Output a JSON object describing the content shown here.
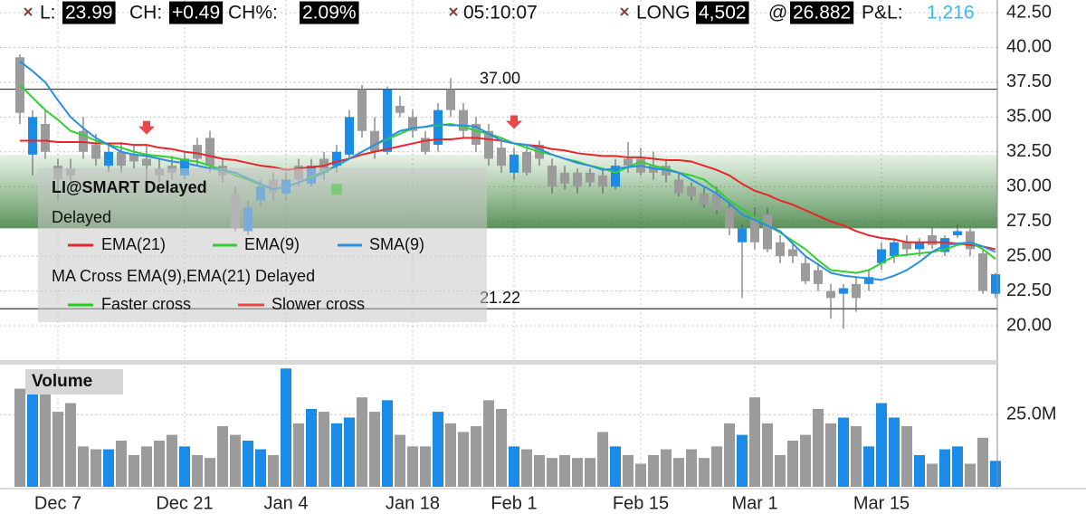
{
  "status_bar": {
    "last_label": "L:",
    "last": "23.99",
    "change_label": "CH:",
    "change": "+0.49",
    "change_pct_label": "CH%:",
    "change_pct": "2.09%",
    "time": "05:10:07",
    "position_side": "LONG",
    "position_size": "4,502",
    "at": "@",
    "avg_price": "26.882",
    "pnl_label": "P&L:",
    "pnl": "1,216"
  },
  "chart_data": [
    {
      "type": "candlestick",
      "legend_title": "LI@SMART Delayed",
      "legend_subtitle": "Delayed",
      "study_name": "MA Cross EMA(9),EMA(21) Delayed",
      "categories": [
        null,
        null,
        null,
        "Dec 7",
        null,
        null,
        null,
        null,
        null,
        null,
        null,
        null,
        null,
        "Dec 21",
        null,
        null,
        null,
        null,
        null,
        null,
        null,
        "Jan 4",
        null,
        null,
        null,
        null,
        null,
        null,
        null,
        null,
        null,
        "Jan 18",
        null,
        null,
        null,
        null,
        null,
        null,
        null,
        "Feb 1",
        null,
        null,
        null,
        null,
        null,
        null,
        null,
        null,
        null,
        "Feb 15",
        null,
        null,
        null,
        null,
        null,
        null,
        null,
        null,
        "Mar 1",
        null,
        null,
        null,
        null,
        null,
        null,
        null,
        null,
        null,
        "Mar 15",
        null,
        null,
        null,
        null,
        null,
        null,
        null,
        null,
        null
      ],
      "open": [
        39.3,
        32.3,
        34.5,
        31.5,
        31.3,
        34.0,
        33.0,
        31.5,
        32.5,
        32.3,
        32.0,
        31.3,
        31.5,
        30.8,
        33.0,
        33.5,
        31.5,
        29.5,
        26.8,
        29.0,
        30.5,
        29.5,
        31.5,
        30.2,
        32.0,
        31.5,
        32.3,
        37.0,
        34.0,
        32.5,
        35.8,
        35.0,
        33.5,
        33.0,
        37.0,
        35.5,
        34.5,
        34.0,
        32.8,
        31.0,
        32.5,
        33.0,
        31.5,
        31.0,
        31.0,
        31.0,
        30.8,
        30.0,
        32.0,
        32.0,
        31.5,
        31.5,
        30.5,
        30.0,
        29.5,
        29.5,
        28.5,
        26.0,
        27.8,
        28.0,
        26.0,
        25.5,
        24.5,
        24.0,
        22.5,
        22.3,
        23.0,
        23.0,
        24.5,
        25.0,
        26.0,
        25.5,
        26.5,
        25.3,
        26.5,
        26.8,
        25.2,
        22.3
      ],
      "high": [
        39.5,
        35.5,
        35.5,
        32.0,
        32.0,
        35.0,
        33.8,
        33.0,
        33.2,
        33.0,
        33.0,
        32.0,
        32.2,
        32.5,
        33.5,
        34.0,
        32.0,
        30.0,
        29.0,
        30.5,
        31.0,
        31.0,
        32.0,
        32.0,
        32.5,
        33.0,
        35.5,
        37.3,
        35.0,
        37.2,
        36.5,
        35.5,
        34.0,
        36.0,
        37.8,
        36.0,
        35.0,
        34.5,
        33.5,
        32.8,
        33.0,
        33.3,
        32.0,
        31.5,
        31.3,
        31.3,
        31.2,
        32.0,
        33.2,
        32.8,
        32.5,
        32.0,
        31.0,
        30.3,
        30.0,
        30.0,
        29.0,
        27.3,
        28.5,
        28.5,
        26.5,
        26.0,
        25.0,
        24.5,
        23.0,
        23.0,
        23.5,
        24.0,
        26.0,
        26.3,
        26.5,
        26.3,
        27.0,
        26.5,
        27.3,
        27.0,
        25.5,
        23.8
      ],
      "low": [
        34.5,
        30.8,
        32.0,
        29.0,
        30.0,
        32.0,
        31.5,
        31.0,
        31.0,
        31.3,
        30.0,
        30.3,
        30.5,
        30.5,
        31.5,
        31.0,
        30.3,
        26.8,
        26.5,
        28.5,
        29.0,
        29.0,
        30.0,
        30.0,
        30.5,
        31.0,
        32.0,
        33.5,
        32.0,
        32.3,
        35.0,
        33.5,
        32.3,
        32.5,
        35.0,
        33.5,
        32.5,
        31.5,
        31.0,
        30.5,
        30.8,
        31.5,
        29.5,
        29.8,
        29.5,
        30.0,
        29.5,
        29.8,
        31.0,
        30.8,
        30.5,
        30.3,
        29.3,
        29.0,
        28.5,
        28.0,
        26.5,
        22.0,
        25.5,
        25.3,
        24.5,
        24.5,
        23.0,
        22.5,
        20.5,
        19.8,
        21.0,
        22.5,
        24.0,
        24.5,
        25.0,
        25.0,
        25.5,
        25.0,
        26.3,
        25.0,
        22.3,
        22.0
      ],
      "close": [
        35.3,
        35.0,
        32.5,
        30.5,
        30.8,
        32.5,
        32.0,
        32.5,
        31.5,
        31.8,
        31.5,
        30.8,
        31.0,
        32.0,
        32.0,
        31.5,
        30.8,
        27.0,
        28.5,
        30.0,
        29.5,
        30.5,
        30.5,
        31.5,
        31.0,
        32.5,
        35.0,
        34.0,
        32.5,
        37.0,
        35.3,
        34.0,
        32.5,
        35.5,
        35.5,
        34.0,
        33.0,
        32.0,
        31.5,
        32.3,
        31.0,
        32.0,
        30.0,
        30.2,
        30.0,
        30.3,
        30.0,
        31.5,
        31.5,
        31.0,
        31.0,
        30.8,
        29.5,
        29.3,
        28.7,
        28.3,
        27.0,
        27.0,
        26.0,
        25.5,
        25.0,
        25.0,
        23.2,
        23.0,
        22.0,
        22.7,
        22.0,
        23.5,
        25.5,
        26.0,
        25.5,
        26.0,
        25.8,
        26.3,
        26.8,
        25.5,
        22.5,
        23.7
      ],
      "up_color": "#1a8ce8",
      "down_color": "#9b9b9b",
      "series": [
        {
          "name": "EMA(21)",
          "color": "#e8262a",
          "values": [
            33.3,
            33.3,
            33.3,
            33.2,
            33.2,
            33.2,
            33.1,
            33.1,
            33.1,
            33.0,
            33.0,
            32.8,
            32.7,
            32.5,
            32.4,
            32.2,
            32.0,
            31.9,
            31.7,
            31.5,
            31.4,
            31.2,
            31.3,
            31.4,
            31.5,
            31.8,
            32.0,
            32.3,
            32.5,
            32.7,
            32.9,
            33.1,
            33.3,
            33.4,
            33.4,
            33.5,
            33.5,
            33.4,
            33.3,
            33.1,
            33.0,
            32.9,
            32.7,
            32.6,
            32.4,
            32.3,
            32.2,
            32.2,
            32.1,
            32.1,
            32.0,
            31.9,
            31.9,
            31.8,
            31.5,
            31.2,
            30.8,
            30.2,
            29.7,
            29.4,
            29.0,
            28.7,
            28.3,
            27.9,
            27.5,
            27.2,
            26.8,
            26.5,
            26.3,
            26.2,
            26.0,
            26.0,
            26.0,
            26.0,
            25.9,
            25.8,
            25.7,
            25.5
          ]
        },
        {
          "name": "EMA(9)",
          "color": "#2fd02f",
          "values": [
            37.3,
            36.4,
            35.5,
            34.8,
            34.0,
            33.7,
            33.3,
            33.0,
            32.8,
            32.5,
            32.3,
            32.2,
            32.1,
            31.9,
            31.8,
            31.5,
            31.2,
            30.8,
            30.5,
            30.1,
            29.8,
            30.0,
            30.3,
            30.7,
            31.1,
            31.5,
            32.0,
            32.5,
            33.0,
            33.4,
            33.8,
            34.2,
            34.3,
            34.4,
            34.5,
            34.3,
            34.0,
            33.8,
            33.5,
            33.1,
            32.8,
            32.5,
            32.3,
            32.0,
            31.8,
            31.5,
            31.3,
            31.0,
            31.4,
            31.8,
            31.5,
            31.3,
            31.0,
            30.8,
            30.5,
            29.8,
            29.0,
            28.4,
            27.8,
            27.2,
            26.7,
            26.1,
            25.5,
            24.7,
            24.0,
            23.9,
            23.8,
            24.0,
            24.5,
            25.0,
            25.1,
            25.2,
            25.3,
            25.5,
            25.8,
            26.0,
            25.5,
            24.8
          ]
        },
        {
          "name": "SMA(9)",
          "color": "#2a8fe0",
          "values": [
            39.0,
            38.3,
            37.5,
            36.2,
            35.0,
            34.2,
            33.5,
            33.0,
            32.5,
            32.3,
            32.2,
            32.0,
            31.8,
            31.7,
            31.5,
            31.3,
            31.2,
            31.0,
            30.6,
            30.2,
            29.8,
            30.0,
            30.3,
            30.6,
            31.0,
            31.5,
            32.0,
            32.5,
            33.0,
            33.5,
            34.0,
            34.2,
            34.3,
            34.5,
            34.4,
            34.4,
            34.3,
            33.8,
            33.3,
            33.1,
            33.0,
            32.7,
            32.3,
            32.0,
            31.7,
            31.5,
            31.2,
            31.3,
            31.4,
            31.5,
            31.3,
            31.2,
            31.0,
            30.5,
            30.0,
            29.5,
            28.8,
            28.0,
            27.6,
            27.2,
            26.8,
            25.9,
            25.0,
            24.4,
            23.8,
            23.6,
            23.5,
            23.4,
            23.3,
            23.6,
            24.0,
            24.6,
            25.3,
            25.8,
            25.9,
            26.0,
            25.7,
            25.3
          ]
        },
        {
          "name": "Faster cross",
          "color": "#22cc22",
          "marker": "square",
          "values": [
            null,
            null,
            null,
            null,
            null,
            null,
            null,
            null,
            null,
            null,
            null,
            null,
            null,
            null,
            null,
            null,
            null,
            null,
            null,
            null,
            null,
            null,
            null,
            null,
            null,
            29.8,
            null,
            null,
            null,
            null,
            null,
            null,
            null,
            null,
            null,
            null,
            null,
            null,
            null,
            null,
            null,
            null,
            null,
            null,
            null,
            null,
            null,
            null,
            null,
            null,
            null,
            null,
            null,
            null,
            null,
            null,
            null,
            null,
            null,
            null,
            null,
            null,
            null,
            null,
            null,
            null,
            null,
            null,
            null,
            null,
            null,
            null,
            null,
            null,
            null,
            null,
            null,
            null
          ]
        },
        {
          "name": "Slower cross",
          "color": "#e84848",
          "marker": "arrow",
          "values": [
            null,
            null,
            null,
            null,
            null,
            null,
            null,
            null,
            null,
            null,
            34.2,
            null,
            null,
            null,
            null,
            null,
            null,
            null,
            null,
            null,
            null,
            null,
            null,
            null,
            null,
            null,
            null,
            null,
            null,
            null,
            null,
            null,
            null,
            null,
            null,
            null,
            null,
            null,
            null,
            34.6,
            null,
            null,
            null,
            null,
            null,
            null,
            null,
            null,
            null,
            null,
            null,
            null,
            null,
            null,
            null,
            null,
            null,
            null,
            null,
            null,
            null,
            null,
            null,
            null,
            null,
            null,
            null,
            null,
            null,
            null,
            null,
            null,
            null,
            null,
            null,
            null,
            null,
            null
          ]
        }
      ],
      "hlines": [
        {
          "value": 37,
          "label": "37.00"
        },
        {
          "value": 21.22,
          "label": "21.22"
        }
      ],
      "zone": [
        27.0,
        32.3
      ],
      "ylim": [
        17.53,
        43.41
      ],
      "yticks": [
        {
          "value": 42.5,
          "label": "42.50"
        },
        {
          "value": 40,
          "label": "40.00"
        },
        {
          "value": 37.5,
          "label": "37.50"
        },
        {
          "value": 35,
          "label": "35.00"
        },
        {
          "value": 32.5,
          "label": "32.50"
        },
        {
          "value": 30,
          "label": "30.00"
        },
        {
          "value": 27.5,
          "label": "27.50"
        },
        {
          "value": 25,
          "label": "25.00"
        },
        {
          "value": 22.5,
          "label": "22.50"
        },
        {
          "value": 20,
          "label": "20.00"
        }
      ],
      "grid": true
    },
    {
      "type": "bar",
      "title": "Volume",
      "values": [
        34,
        35,
        34,
        26,
        29,
        14,
        13,
        13,
        16,
        11,
        14,
        16,
        18,
        14,
        11,
        10,
        21,
        18,
        16,
        13,
        11,
        41,
        22,
        27,
        26,
        22,
        24,
        31,
        26,
        30,
        18,
        14,
        14,
        26,
        22,
        19,
        21,
        30,
        27,
        14,
        13,
        11,
        10,
        11,
        10,
        10,
        19,
        14,
        11,
        8,
        11,
        13,
        10,
        13,
        10,
        14,
        22,
        18,
        31,
        22,
        11,
        16,
        18,
        27,
        22,
        24,
        21,
        14,
        29,
        24,
        21,
        11,
        8,
        13,
        14,
        8,
        17,
        9
      ],
      "ylim": [
        0,
        41.7
      ],
      "yticks": [
        {
          "value": 25,
          "label": "25.0M"
        }
      ],
      "grid": true
    }
  ]
}
